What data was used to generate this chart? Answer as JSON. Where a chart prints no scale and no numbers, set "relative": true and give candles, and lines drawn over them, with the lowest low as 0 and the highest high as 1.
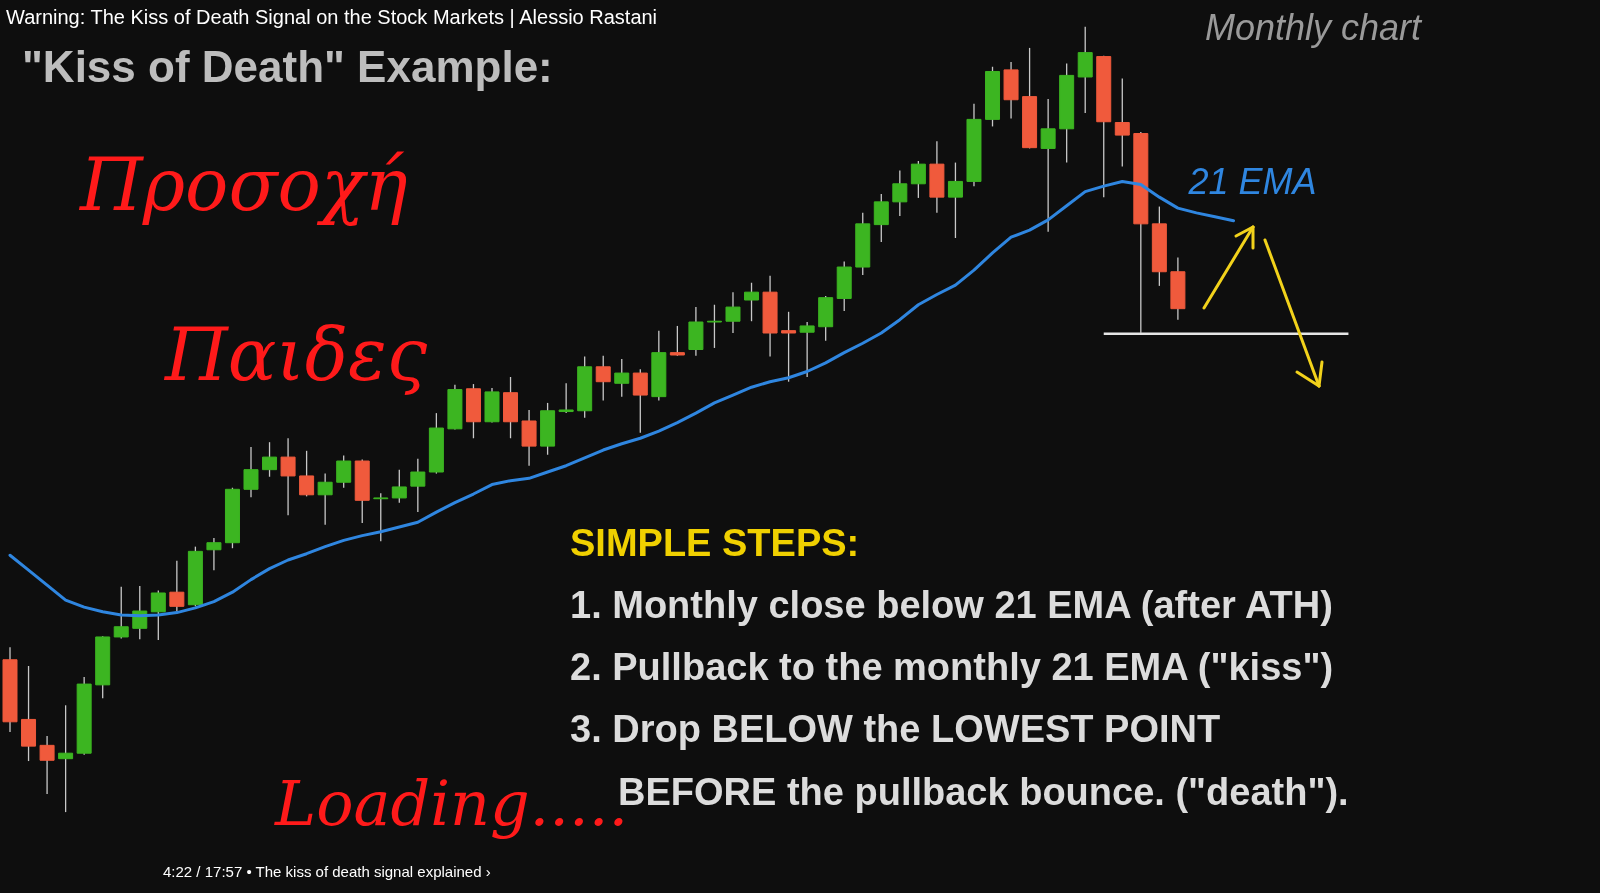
{
  "chart_data": {
    "type": "candlestick",
    "title": "Warning: The Kiss of Death Signal on the Stock Markets | Alessio Rastani",
    "relative": true,
    "categories": [
      null,
      null,
      null,
      null,
      null,
      null,
      null,
      null,
      null,
      null,
      null,
      null,
      null,
      null,
      null,
      null,
      null,
      null,
      null,
      null,
      null,
      null,
      null,
      null,
      null,
      null,
      null,
      null,
      null,
      null,
      null,
      null,
      null,
      null,
      null,
      null,
      null,
      null,
      null,
      null,
      null,
      null,
      null,
      null,
      null,
      null,
      null,
      null,
      null,
      null,
      null,
      null,
      null,
      null,
      null,
      null,
      null,
      null,
      null,
      null,
      null,
      null,
      null,
      null,
      null,
      null,
      null,
      null,
      null,
      null,
      null,
      null,
      null
    ],
    "ohlc": [
      [
        0.194,
        0.21,
        0.102,
        0.115
      ],
      [
        0.118,
        0.186,
        0.065,
        0.084
      ],
      [
        0.085,
        0.097,
        0.023,
        0.066
      ],
      [
        0.068,
        0.136,
        0,
        0.075
      ],
      [
        0.075,
        0.172,
        0.073,
        0.163
      ],
      [
        0.162,
        0.224,
        0.145,
        0.223
      ],
      [
        0.223,
        0.287,
        0.221,
        0.236
      ],
      [
        0.234,
        0.288,
        0.22,
        0.256
      ],
      [
        0.255,
        0.282,
        0.219,
        0.279
      ],
      [
        0.28,
        0.32,
        0.256,
        0.262
      ],
      [
        0.264,
        0.338,
        0.262,
        0.332
      ],
      [
        0.334,
        0.349,
        0.308,
        0.343
      ],
      [
        0.343,
        0.413,
        0.336,
        0.411
      ],
      [
        0.411,
        0.465,
        0.401,
        0.436
      ],
      [
        0.436,
        0.471,
        0.427,
        0.452
      ],
      [
        0.452,
        0.476,
        0.378,
        0.428
      ],
      [
        0.428,
        0.46,
        0.402,
        0.404
      ],
      [
        0.404,
        0.431,
        0.366,
        0.42
      ],
      [
        0.42,
        0.454,
        0.413,
        0.447
      ],
      [
        0.447,
        0.449,
        0.368,
        0.397
      ],
      [
        0.399,
        0.406,
        0.345,
        0.4
      ],
      [
        0.4,
        0.436,
        0.394,
        0.414
      ],
      [
        0.415,
        0.45,
        0.382,
        0.433
      ],
      [
        0.433,
        0.508,
        0.431,
        0.489
      ],
      [
        0.488,
        0.544,
        0.487,
        0.538
      ],
      [
        0.539,
        0.545,
        0.476,
        0.497
      ],
      [
        0.497,
        0.54,
        0.496,
        0.535
      ],
      [
        0.534,
        0.554,
        0.476,
        0.497
      ],
      [
        0.498,
        0.512,
        0.441,
        0.466
      ],
      [
        0.466,
        0.521,
        0.455,
        0.511
      ],
      [
        0.51,
        0.546,
        0.508,
        0.512
      ],
      [
        0.511,
        0.58,
        0.502,
        0.567
      ],
      [
        0.567,
        0.581,
        0.524,
        0.548
      ],
      [
        0.546,
        0.577,
        0.529,
        0.559
      ],
      [
        0.559,
        0.564,
        0.483,
        0.531
      ],
      [
        0.529,
        0.613,
        0.524,
        0.585
      ],
      [
        0.585,
        0.619,
        0.581,
        0.582
      ],
      [
        0.589,
        0.643,
        0.581,
        0.624
      ],
      [
        0.624,
        0.646,
        0.591,
        0.625
      ],
      [
        0.625,
        0.662,
        0.61,
        0.643
      ],
      [
        0.652,
        0.674,
        0.625,
        0.662
      ],
      [
        0.662,
        0.683,
        0.58,
        0.61
      ],
      [
        0.613,
        0.637,
        0.548,
        0.61
      ],
      [
        0.611,
        0.624,
        0.554,
        0.619
      ],
      [
        0.618,
        0.657,
        0.6,
        0.655
      ],
      [
        0.654,
        0.701,
        0.638,
        0.694
      ],
      [
        0.694,
        0.763,
        0.684,
        0.749
      ],
      [
        0.748,
        0.787,
        0.726,
        0.777
      ],
      [
        0.777,
        0.817,
        0.759,
        0.8
      ],
      [
        0.8,
        0.829,
        0.782,
        0.825
      ],
      [
        0.825,
        0.854,
        0.763,
        0.783
      ],
      [
        0.783,
        0.827,
        0.731,
        0.803
      ],
      [
        0.803,
        0.902,
        0.797,
        0.882
      ],
      [
        0.882,
        0.949,
        0.873,
        0.943
      ],
      [
        0.945,
        0.955,
        0.883,
        0.907
      ],
      [
        0.911,
        0.973,
        0.845,
        0.846
      ],
      [
        0.845,
        0.908,
        0.739,
        0.87
      ],
      [
        0.87,
        0.953,
        0.827,
        0.938
      ],
      [
        0.936,
        1,
        0.89,
        0.967
      ],
      [
        0.962,
        0.963,
        0.783,
        0.879
      ],
      [
        0.878,
        0.934,
        0.822,
        0.862
      ],
      [
        0.864,
        0.866,
        0.61,
        0.749
      ],
      [
        0.749,
        0.771,
        0.67,
        0.688
      ],
      [
        0.688,
        0.706,
        0.627,
        0.641
      ],
      null,
      null,
      null,
      null,
      null,
      null,
      null,
      null,
      null
    ],
    "colors": [
      "#f05a3c",
      "#f05a3c",
      "#f05a3c",
      "#3cb521",
      "#3cb521",
      "#3cb521",
      "#3cb521",
      "#3cb521",
      "#3cb521",
      "#f05a3c",
      "#3cb521",
      "#3cb521",
      "#3cb521",
      "#3cb521",
      "#3cb521",
      "#f05a3c",
      "#f05a3c",
      "#3cb521",
      "#3cb521",
      "#f05a3c",
      "#3cb521",
      "#3cb521",
      "#3cb521",
      "#3cb521",
      "#3cb521",
      "#f05a3c",
      "#3cb521",
      "#f05a3c",
      "#f05a3c",
      "#3cb521",
      "#3cb521",
      "#3cb521",
      "#f05a3c",
      "#3cb521",
      "#f05a3c",
      "#3cb521",
      "#f05a3c",
      "#3cb521",
      "#3cb521",
      "#3cb521",
      "#3cb521",
      "#f05a3c",
      "#f05a3c",
      "#3cb521",
      "#3cb521",
      "#3cb521",
      "#3cb521",
      "#3cb521",
      "#3cb521",
      "#3cb521",
      "#f05a3c",
      "#3cb521",
      "#3cb521",
      "#3cb521",
      "#f05a3c",
      "#f05a3c",
      "#3cb521",
      "#3cb521",
      "#3cb521",
      "#f05a3c",
      "#f05a3c",
      "#f05a3c",
      "#f05a3c",
      "#f05a3c",
      null,
      null,
      null,
      null,
      null,
      null,
      null,
      null,
      null
    ],
    "series": [
      {
        "name": "21 EMA",
        "type": "line",
        "color": "#2f86e0",
        "values": [
          0.327,
          0.308,
          0.289,
          0.27,
          0.261,
          0.255,
          0.251,
          0.25,
          0.251,
          0.254,
          0.26,
          0.268,
          0.28,
          0.296,
          0.31,
          0.321,
          0.329,
          0.338,
          0.346,
          0.352,
          0.357,
          0.363,
          0.369,
          0.382,
          0.394,
          0.405,
          0.417,
          0.422,
          0.425,
          0.433,
          0.441,
          0.451,
          0.461,
          0.469,
          0.476,
          0.485,
          0.496,
          0.508,
          0.521,
          0.531,
          0.541,
          0.548,
          0.553,
          0.561,
          0.572,
          0.585,
          0.597,
          0.61,
          0.627,
          0.646,
          0.659,
          0.671,
          0.69,
          0.712,
          0.732,
          0.741,
          0.754,
          0.772,
          0.79,
          0.797,
          0.803,
          0.799,
          0.783,
          0.769,
          0.763,
          0.758,
          0.753,
          null,
          null,
          null,
          null,
          null,
          null
        ]
      }
    ],
    "ref_lines": [
      {
        "axis": "y",
        "value": 0.609,
        "color": "#e6e6e6"
      }
    ],
    "annotations": [
      "\"Kiss of Death\" Example:",
      "Monthly chart",
      "Προσοχή",
      "Παιδες",
      "SIMPLE STEPS:",
      "1. Monthly close below 21 EMA (after ATH)",
      "2. Pullback to the monthly 21 EMA (\"kiss\")",
      "3. Drop BELOW the LOWEST POINT",
      "BEFORE the pullback bounce. (\"death\").",
      "Loading.....",
      "4:22 / 17:57 • The kiss of death signal explained ›"
    ]
  }
}
